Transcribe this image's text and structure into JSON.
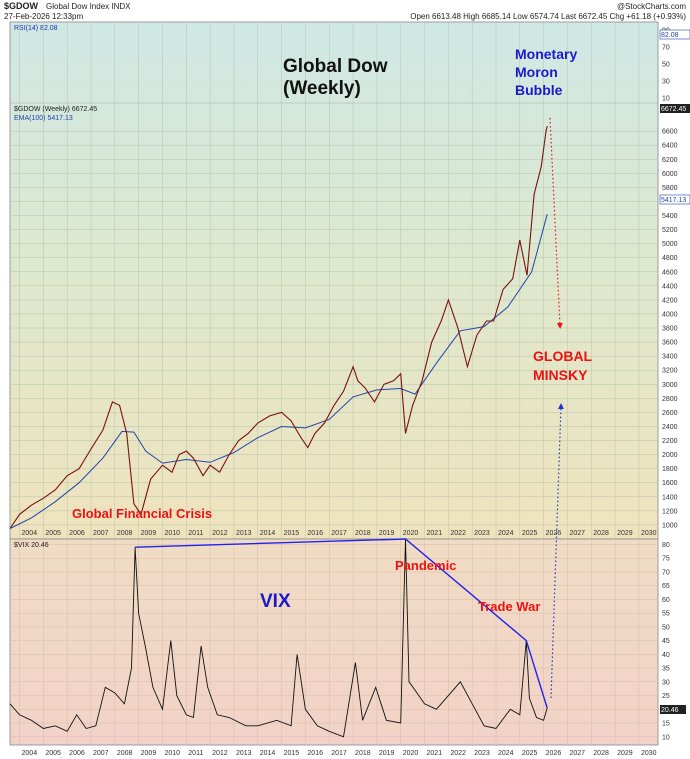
{
  "header": {
    "symbol": "$GDOW",
    "name": "Global Dow Index INDX",
    "date": "27-Feb-2026 12:33pm",
    "credit": "@StockCharts.com",
    "quote": "Open 6613.48  High 6685.14  Low 6574.74  Last 6672.45  Chg +61.18 (+0.93%)"
  },
  "colors": {
    "price": "#7a1010",
    "ema": "#2244aa",
    "vix": "#111111",
    "arrow_red": "#ee1111",
    "arrow_blue": "#2233cc",
    "trend": "#2222ee",
    "ann_black": "#111111",
    "ann_blue": "#1a1acc",
    "ann_red": "#ee1111"
  },
  "rsi_panel": {
    "label": "RSI(14) 82.08",
    "ticks": [
      "90",
      "70",
      "50",
      "30",
      "10"
    ],
    "price_tag": "82.08"
  },
  "chart_data": [
    {
      "type": "line",
      "panel": "price",
      "legend": [
        "$GDOW (Weekly) 6672.45",
        "EMA(100) 5417.13"
      ],
      "x_ticks": [
        "2004",
        "2005",
        "2006",
        "2007",
        "2008",
        "2009",
        "2010",
        "2011",
        "2012",
        "2013",
        "2014",
        "2015",
        "2016",
        "2017",
        "2018",
        "2019",
        "2020",
        "2021",
        "2022",
        "2023",
        "2024",
        "2025",
        "2026",
        "2027",
        "2028",
        "2029",
        "2030"
      ],
      "xlim": [
        2003.6,
        2030.8
      ],
      "ylim": [
        800,
        7000
      ],
      "y_ticks": [
        1000,
        1200,
        1400,
        1600,
        1800,
        2000,
        2200,
        2400,
        2600,
        2800,
        3000,
        3200,
        3400,
        3600,
        3800,
        4000,
        4200,
        4400,
        4600,
        4800,
        5000,
        5200,
        5400,
        5600,
        5800,
        6000,
        6200,
        6400,
        6600
      ],
      "last_price_tag": "6672.45",
      "ema_tag": "5417.13",
      "series": [
        {
          "name": "$GDOW (Weekly) 6672.45",
          "x": [
            2003.6,
            2004.0,
            2004.5,
            2005.0,
            2005.5,
            2006.0,
            2006.5,
            2007.0,
            2007.5,
            2007.9,
            2008.2,
            2008.5,
            2008.8,
            2009.1,
            2009.5,
            2010.0,
            2010.4,
            2010.7,
            2011.0,
            2011.3,
            2011.7,
            2012.0,
            2012.4,
            2012.8,
            2013.2,
            2013.6,
            2014.0,
            2014.5,
            2015.0,
            2015.4,
            2015.8,
            2016.1,
            2016.4,
            2016.8,
            2017.2,
            2017.6,
            2018.0,
            2018.2,
            2018.5,
            2018.9,
            2019.3,
            2019.7,
            2020.0,
            2020.2,
            2020.5,
            2020.9,
            2021.3,
            2021.7,
            2022.0,
            2022.4,
            2022.8,
            2023.2,
            2023.6,
            2023.9,
            2024.3,
            2024.7,
            2025.0,
            2025.3,
            2025.6,
            2025.9,
            2026.1,
            2026.15
          ],
          "y": [
            950,
            1150,
            1280,
            1380,
            1500,
            1700,
            1800,
            2080,
            2350,
            2750,
            2700,
            2300,
            1300,
            1150,
            1650,
            1850,
            1750,
            2000,
            2050,
            1950,
            1700,
            1850,
            1750,
            2000,
            2200,
            2300,
            2450,
            2550,
            2600,
            2480,
            2250,
            2100,
            2300,
            2450,
            2700,
            2900,
            3250,
            3050,
            2950,
            2750,
            3000,
            3050,
            3150,
            2300,
            2700,
            3050,
            3600,
            3900,
            4200,
            3800,
            3250,
            3700,
            3900,
            3900,
            4350,
            4500,
            5050,
            4550,
            5700,
            6100,
            6600,
            6672
          ]
        },
        {
          "name": "EMA(100) 5417.13",
          "x": [
            2003.6,
            2004.5,
            2005.5,
            2006.5,
            2007.5,
            2008.3,
            2008.8,
            2009.3,
            2010.0,
            2011.0,
            2012.0,
            2013.0,
            2014.0,
            2015.0,
            2016.0,
            2017.0,
            2018.0,
            2019.0,
            2020.0,
            2020.6,
            2021.5,
            2022.5,
            2023.5,
            2024.5,
            2025.5,
            2026.15
          ],
          "y": [
            950,
            1100,
            1330,
            1600,
            1950,
            2330,
            2320,
            2050,
            1880,
            1930,
            1890,
            2030,
            2240,
            2400,
            2380,
            2500,
            2820,
            2920,
            2940,
            2860,
            3300,
            3760,
            3820,
            4100,
            4600,
            5417
          ]
        }
      ]
    },
    {
      "type": "line",
      "panel": "vix",
      "legend": [
        "$VIX 20.46"
      ],
      "x_ticks": [
        "2004",
        "2005",
        "2006",
        "2007",
        "2008",
        "2009",
        "2010",
        "2011",
        "2012",
        "2013",
        "2014",
        "2015",
        "2016",
        "2017",
        "2018",
        "2019",
        "2020",
        "2021",
        "2022",
        "2023",
        "2024",
        "2025",
        "2026",
        "2027",
        "2028",
        "2029",
        "2030"
      ],
      "xlim": [
        2003.6,
        2030.8
      ],
      "ylim": [
        7,
        82
      ],
      "y_ticks": [
        10,
        15,
        20,
        25,
        30,
        35,
        40,
        45,
        50,
        55,
        60,
        65,
        70,
        75,
        80
      ],
      "last_tag": "20.46",
      "series": [
        {
          "name": "$VIX 20.46",
          "x": [
            2003.6,
            2004.0,
            2004.5,
            2005.0,
            2005.5,
            2006.0,
            2006.4,
            2006.8,
            2007.2,
            2007.6,
            2008.0,
            2008.4,
            2008.7,
            2008.85,
            2009.0,
            2009.3,
            2009.6,
            2010.0,
            2010.35,
            2010.6,
            2011.0,
            2011.3,
            2011.62,
            2011.9,
            2012.3,
            2012.8,
            2013.5,
            2014.0,
            2014.8,
            2015.4,
            2015.65,
            2016.0,
            2016.5,
            2017.0,
            2017.6,
            2018.1,
            2018.4,
            2018.95,
            2019.4,
            2020.0,
            2020.2,
            2020.35,
            2020.6,
            2021.0,
            2021.5,
            2022.0,
            2022.5,
            2023.0,
            2023.5,
            2024.0,
            2024.6,
            2025.0,
            2025.27,
            2025.4,
            2025.7,
            2026.0,
            2026.15
          ],
          "y": [
            22,
            18,
            16,
            13,
            14,
            12,
            18,
            13,
            14,
            28,
            26,
            22,
            35,
            79,
            55,
            42,
            28,
            20,
            45,
            25,
            18,
            17,
            43,
            28,
            18,
            17,
            14,
            14,
            16,
            14,
            40,
            20,
            14,
            12,
            10,
            37,
            16,
            28,
            16,
            15,
            82,
            30,
            27,
            22,
            20,
            25,
            30,
            22,
            14,
            13,
            20,
            18,
            45,
            24,
            17,
            16,
            20.46
          ]
        }
      ]
    }
  ],
  "annotations": {
    "title_line1": "Global Dow",
    "title_line2": "(Weekly)",
    "bubble_line1": "Monetary",
    "bubble_line2": "Moron",
    "bubble_line3": "Bubble",
    "minsky_line1": "GLOBAL",
    "minsky_line2": "MINSKY",
    "gfc": "Global Financial Crisis",
    "vix": "VIX",
    "pandemic": "Pandemic",
    "tradewar": "Trade War"
  }
}
